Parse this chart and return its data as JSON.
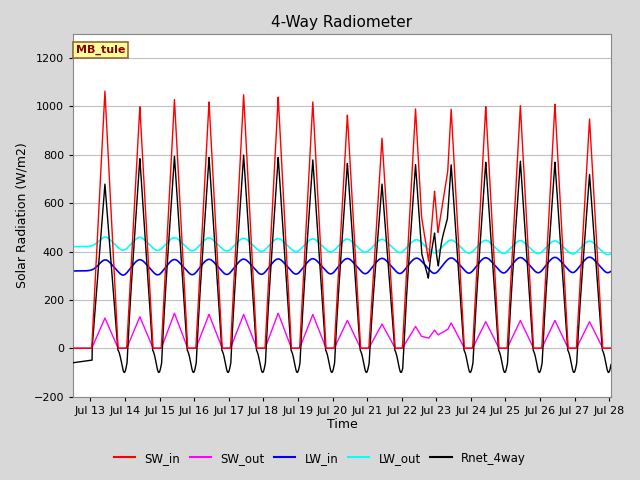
{
  "title": "4-Way Radiometer",
  "xlabel": "Time",
  "ylabel": "Solar Radiation (W/m2)",
  "ylim": [
    -200,
    1300
  ],
  "yticks": [
    -200,
    0,
    200,
    400,
    600,
    800,
    1000,
    1200
  ],
  "xlim_days": [
    12.5,
    28.05
  ],
  "xtick_days": [
    13,
    14,
    15,
    16,
    17,
    18,
    19,
    20,
    21,
    22,
    23,
    24,
    25,
    26,
    27,
    28
  ],
  "xtick_labels": [
    "Jul 13",
    "Jul 14",
    "Jul 15",
    "Jul 16",
    "Jul 17",
    "Jul 18",
    "Jul 19",
    "Jul 20",
    "Jul 21",
    "Jul 22",
    "Jul 23",
    "Jul 24",
    "Jul 25",
    "Jul 26",
    "Jul 27",
    "Jul 28"
  ],
  "station_label": "MB_tule",
  "station_box_facecolor": "#FFFF99",
  "station_box_edgecolor": "#996633",
  "colors": {
    "SW_in": "#FF0000",
    "SW_out": "#FF00FF",
    "LW_in": "#0000FF",
    "LW_out": "#00FFFF",
    "Rnet_4way": "#000000"
  },
  "legend_labels": [
    "SW_in",
    "SW_out",
    "LW_in",
    "LW_out",
    "Rnet_4way"
  ],
  "fig_facecolor": "#D8D8D8",
  "plot_facecolor": "#FFFFFF",
  "grid_color": "#C0C0C0",
  "title_fontsize": 11,
  "label_fontsize": 9,
  "tick_fontsize": 8
}
